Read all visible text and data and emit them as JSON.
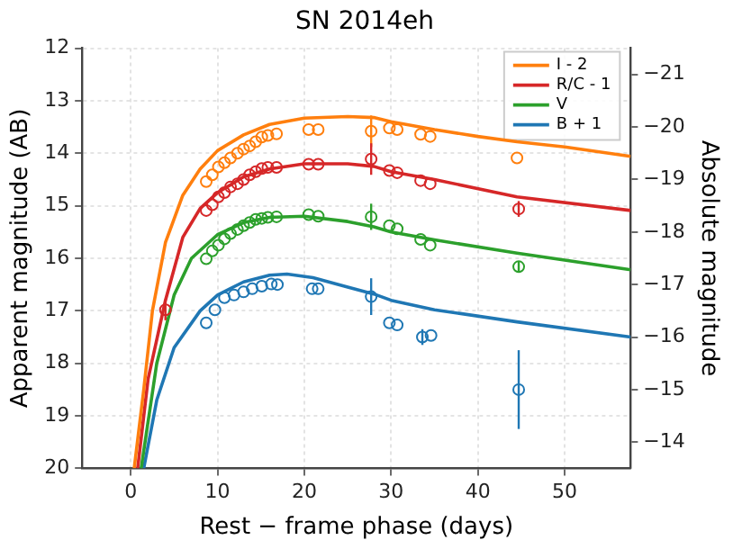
{
  "chart_data": {
    "type": "scatter",
    "title": "SN 2014eh",
    "xlabel": "Rest − frame phase (days)",
    "ylabel": "Apparent magnitude (AB)",
    "y2label": "Absolute magnitude",
    "xlim": [
      -5.6,
      57.6
    ],
    "xticks": [
      0,
      10,
      20,
      30,
      40,
      50
    ],
    "ylim": [
      20,
      12
    ],
    "yticks": [
      12,
      13,
      14,
      15,
      16,
      17,
      18,
      19,
      20
    ],
    "y2lim": [
      -13.5,
      -21.5
    ],
    "y2ticks": [
      -21,
      -20,
      -19,
      -18,
      -17,
      -16,
      -15,
      -14
    ],
    "grid": true,
    "legend": "top right",
    "series": [
      {
        "type": "line",
        "name": "I - 2",
        "color": "#ff7f0e",
        "marker": "none",
        "x": [
          0.4,
          1.5,
          2.5,
          4,
          6,
          8,
          10,
          13,
          16,
          20,
          25,
          28,
          30,
          35,
          40,
          44.5,
          50,
          57.6
        ],
        "values": [
          20,
          18.5,
          17,
          15.7,
          14.8,
          14.3,
          13.95,
          13.65,
          13.45,
          13.33,
          13.3,
          13.32,
          13.4,
          13.55,
          13.68,
          13.78,
          13.88,
          14.06
        ]
      },
      {
        "type": "line",
        "name": "R/C - 1",
        "color": "#d62728",
        "marker": "none",
        "x": [
          0.8,
          2,
          4,
          6,
          8,
          10,
          13,
          16,
          20,
          25,
          28,
          30,
          35,
          44.5,
          57.6
        ],
        "values": [
          20,
          18.3,
          16.8,
          15.6,
          15.05,
          14.75,
          14.45,
          14.3,
          14.2,
          14.2,
          14.25,
          14.35,
          14.5,
          14.83,
          15.09
        ]
      },
      {
        "type": "line",
        "name": "V",
        "color": "#2ca02c",
        "marker": "none",
        "x": [
          1.2,
          3,
          5,
          7,
          10,
          13,
          16,
          20,
          25,
          28,
          30,
          35,
          44.5,
          57.6
        ],
        "values": [
          20,
          18,
          16.7,
          16,
          15.55,
          15.32,
          15.22,
          15.2,
          15.3,
          15.4,
          15.5,
          15.65,
          15.9,
          16.22
        ]
      },
      {
        "type": "line",
        "name": "B + 1",
        "color": "#1f77b4",
        "marker": "none",
        "x": [
          1.5,
          3,
          5,
          8,
          10,
          13,
          16,
          18,
          21,
          25,
          28,
          30,
          35,
          44.5,
          57.6
        ],
        "values": [
          20,
          18.7,
          17.7,
          17,
          16.7,
          16.45,
          16.32,
          16.3,
          16.37,
          16.55,
          16.68,
          16.8,
          16.98,
          17.21,
          17.5
        ]
      },
      {
        "type": "scatter",
        "color": "#ff7f0e",
        "marker": "circle",
        "x": [
          8.7,
          9.4,
          10.1,
          10.8,
          11.5,
          12.3,
          13,
          13.7,
          14.4,
          15.1,
          15.8,
          16.8,
          20.5,
          21.6,
          27.7,
          29.8,
          30.7,
          33.4,
          34.5,
          44.5
        ],
        "values": [
          14.54,
          14.41,
          14.26,
          14.18,
          14.09,
          14,
          13.92,
          13.86,
          13.78,
          13.69,
          13.66,
          13.63,
          13.55,
          13.55,
          13.58,
          13.52,
          13.55,
          13.64,
          13.68,
          14.09
        ],
        "errors": [
          null,
          null,
          null,
          null,
          null,
          null,
          null,
          null,
          null,
          null,
          null,
          null,
          null,
          null,
          0.3,
          null,
          null,
          null,
          null,
          null
        ]
      },
      {
        "type": "scatter",
        "color": "#d62728",
        "marker": "circle",
        "x": [
          4,
          8.7,
          9.4,
          10.1,
          10.8,
          11.5,
          12.3,
          13,
          13.7,
          14.4,
          15.1,
          15.8,
          16.8,
          20.5,
          21.6,
          27.7,
          29.8,
          30.7,
          33.4,
          34.5,
          44.7
        ],
        "values": [
          16.98,
          15.09,
          14.98,
          14.83,
          14.75,
          14.64,
          14.58,
          14.5,
          14.41,
          14.35,
          14.29,
          14.27,
          14.27,
          14.21,
          14.21,
          14.11,
          14.33,
          14.37,
          14.52,
          14.58,
          15.06
        ],
        "errors": [
          0.2,
          null,
          null,
          null,
          null,
          null,
          null,
          null,
          null,
          null,
          null,
          null,
          null,
          null,
          null,
          0.3,
          null,
          null,
          null,
          null,
          0.15
        ]
      },
      {
        "type": "scatter",
        "color": "#2ca02c",
        "marker": "circle",
        "x": [
          8.7,
          9.4,
          10.1,
          10.8,
          11.5,
          12.3,
          13,
          13.7,
          14.4,
          15.1,
          15.8,
          16.8,
          20.5,
          21.6,
          27.7,
          29.8,
          30.7,
          33.4,
          34.5,
          44.7
        ],
        "values": [
          16.01,
          15.86,
          15.75,
          15.63,
          15.53,
          15.45,
          15.38,
          15.32,
          15.26,
          15.24,
          15.22,
          15.21,
          15.17,
          15.2,
          15.21,
          15.38,
          15.44,
          15.64,
          15.75,
          16.16
        ],
        "errors": [
          null,
          null,
          null,
          null,
          null,
          null,
          null,
          null,
          null,
          null,
          null,
          null,
          null,
          null,
          0.25,
          null,
          null,
          null,
          null,
          0.1
        ]
      },
      {
        "type": "scatter",
        "color": "#1f77b4",
        "marker": "circle",
        "x": [
          8.7,
          9.7,
          10.8,
          11.9,
          13,
          14,
          15.1,
          16.2,
          16.9,
          20.9,
          21.6,
          27.7,
          29.8,
          30.7,
          33.6,
          34.6,
          44.7
        ],
        "values": [
          17.23,
          16.98,
          16.75,
          16.7,
          16.64,
          16.58,
          16.53,
          16.49,
          16.5,
          16.58,
          16.58,
          16.73,
          17.23,
          17.27,
          17.5,
          17.47,
          18.5
        ],
        "errors": [
          null,
          null,
          null,
          null,
          null,
          null,
          null,
          null,
          null,
          null,
          null,
          0.35,
          null,
          null,
          0.15,
          null,
          0.75
        ]
      }
    ]
  }
}
